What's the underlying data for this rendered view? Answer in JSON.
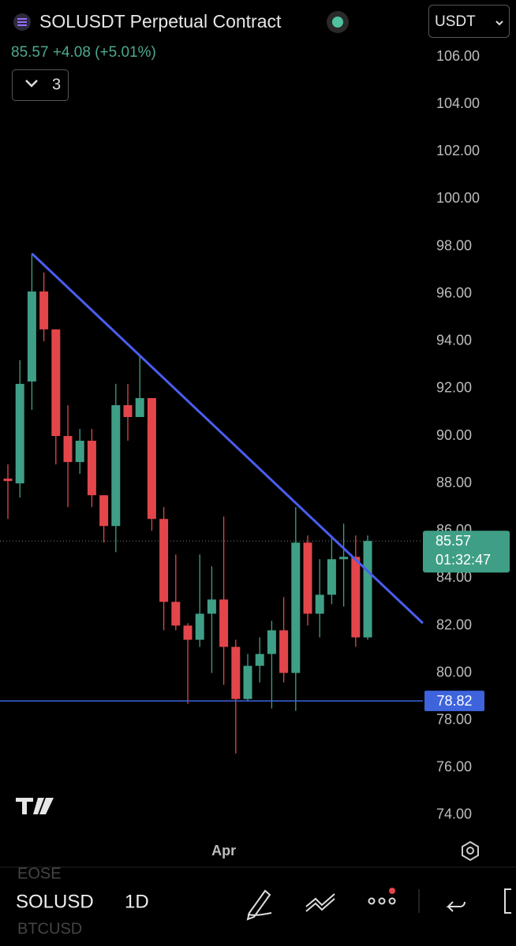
{
  "chart_data": {
    "type": "candlestick",
    "title": "SOLUSDT Perpetual Contract",
    "subtitle": "85.57 +4.08 (+5.01%)",
    "currency": "USDT",
    "indicator_count": "3",
    "categories": [
      null,
      null,
      null,
      null,
      null,
      null,
      null,
      null,
      null,
      null,
      null,
      null,
      null,
      null,
      null,
      null,
      null,
      null,
      "Apr",
      null,
      null,
      null,
      null,
      null,
      null,
      null,
      null,
      null,
      null,
      null,
      null
    ],
    "series": [
      {
        "up_color": "#3f9f86",
        "down_color": "#e2464b",
        "open": [
          88.2,
          88.0,
          92.3,
          96.1,
          94.5,
          90.0,
          88.9,
          89.8,
          87.5,
          86.2,
          91.3,
          90.8,
          91.6,
          86.5,
          83.0,
          82.0,
          81.4,
          82.5,
          83.1,
          81.1,
          78.9,
          80.3,
          80.8,
          81.8,
          80.0,
          85.5,
          82.5,
          83.3,
          84.8,
          84.9,
          81.5
        ],
        "high": [
          88.8,
          93.2,
          97.7,
          96.9,
          94.5,
          91.3,
          90.3,
          90.3,
          87.5,
          92.2,
          92.2,
          93.4,
          91.6,
          87.0,
          85.0,
          82.1,
          85.0,
          84.5,
          86.6,
          81.4,
          80.8,
          81.5,
          82.2,
          83.2,
          87.0,
          85.8,
          84.8,
          85.8,
          86.3,
          85.8,
          85.8
        ],
        "low": [
          86.5,
          87.4,
          91.1,
          94.0,
          88.8,
          87.0,
          88.4,
          87.0,
          85.5,
          85.1,
          89.8,
          90.8,
          86.0,
          81.8,
          81.8,
          78.7,
          81.1,
          80.0,
          79.5,
          76.6,
          78.8,
          79.6,
          78.5,
          79.6,
          78.4,
          82.0,
          81.5,
          82.9,
          82.8,
          81.1,
          81.4
        ],
        "close": [
          88.1,
          92.2,
          96.1,
          94.5,
          90.0,
          88.9,
          89.8,
          87.5,
          86.2,
          91.3,
          90.8,
          91.6,
          86.5,
          83.0,
          82.0,
          81.4,
          82.5,
          83.1,
          81.1,
          78.9,
          80.3,
          80.8,
          81.8,
          80.0,
          85.5,
          82.5,
          83.3,
          84.8,
          84.9,
          81.5,
          85.57
        ]
      }
    ],
    "ylim": [
      73.3,
      108.4
    ],
    "yticks": [
      {
        "value": 74,
        "label": "74.00"
      },
      {
        "value": 76,
        "label": "76.00"
      },
      {
        "value": 78,
        "label": "78.00"
      },
      {
        "value": 80,
        "label": "80.00"
      },
      {
        "value": 82,
        "label": "82.00"
      },
      {
        "value": 84,
        "label": "84.00"
      },
      {
        "value": 86,
        "label": "86.00"
      },
      {
        "value": 88,
        "label": "88.00"
      },
      {
        "value": 90,
        "label": "90.00"
      },
      {
        "value": 92,
        "label": "92.00"
      },
      {
        "value": 94,
        "label": "94.00"
      },
      {
        "value": 96,
        "label": "96.00"
      },
      {
        "value": 98,
        "label": "98.00"
      },
      {
        "value": 100,
        "label": "100.00"
      },
      {
        "value": 102,
        "label": "102.00"
      },
      {
        "value": 104,
        "label": "104.00"
      },
      {
        "value": 106,
        "label": "106.00"
      }
    ],
    "trendline": {
      "x": [
        2,
        34.6
      ],
      "y": [
        97.7,
        82.1
      ],
      "color": "#4a5ef0"
    },
    "level": 78.82,
    "level_color": "#3d63dd",
    "last_price": 85.57,
    "countdown": "01:32:47"
  },
  "toolbar": {
    "symbol": "SOLUSD",
    "interval": "1D",
    "watch_above": "EOSE",
    "watch_below": "BTCUSD"
  }
}
